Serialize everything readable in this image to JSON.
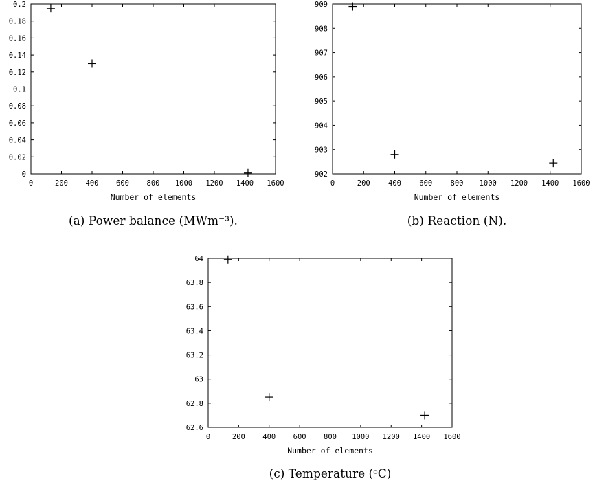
{
  "chart_data": [
    {
      "type": "scatter",
      "xlabel": "Number of elements",
      "caption": "(a) Power balance (MWm⁻³).",
      "xlim": [
        0,
        1600
      ],
      "ylim": [
        0,
        0.2
      ],
      "xticks": [
        0,
        200,
        400,
        600,
        800,
        1000,
        1200,
        1400,
        1600
      ],
      "xtick_labels": [
        "0",
        "200",
        "400",
        "600",
        "800",
        "1000",
        "1200",
        "1400",
        "1600"
      ],
      "yticks": [
        0,
        0.02,
        0.04,
        0.06,
        0.08,
        0.1,
        0.12,
        0.14,
        0.16,
        0.18,
        0.2
      ],
      "ytick_labels": [
        "0",
        "0.02",
        "0.04",
        "0.06",
        "0.08",
        "0.1",
        "0.12",
        "0.14",
        "0.16",
        "0.18",
        "0.2"
      ],
      "series": [
        {
          "marker": "plus",
          "x": [
            130,
            400,
            1420
          ],
          "y": [
            0.195,
            0.13,
            0.001
          ]
        }
      ]
    },
    {
      "type": "scatter",
      "xlabel": "Number of elements",
      "caption": "(b) Reaction (N).",
      "xlim": [
        0,
        1600
      ],
      "ylim": [
        902,
        909
      ],
      "xticks": [
        0,
        200,
        400,
        600,
        800,
        1000,
        1200,
        1400,
        1600
      ],
      "xtick_labels": [
        "0",
        "200",
        "400",
        "600",
        "800",
        "1000",
        "1200",
        "1400",
        "1600"
      ],
      "yticks": [
        902,
        903,
        904,
        905,
        906,
        907,
        908,
        909
      ],
      "ytick_labels": [
        "902",
        "903",
        "904",
        "905",
        "906",
        "907",
        "908",
        "909"
      ],
      "series": [
        {
          "marker": "plus",
          "x": [
            130,
            400,
            1420
          ],
          "y": [
            908.9,
            902.8,
            902.45
          ]
        }
      ]
    },
    {
      "type": "scatter",
      "xlabel": "Number of elements",
      "caption": "(c) Temperature (ᵒC)",
      "xlim": [
        0,
        1600
      ],
      "ylim": [
        62.6,
        64
      ],
      "xticks": [
        0,
        200,
        400,
        600,
        800,
        1000,
        1200,
        1400,
        1600
      ],
      "xtick_labels": [
        "0",
        "200",
        "400",
        "600",
        "800",
        "1000",
        "1200",
        "1400",
        "1600"
      ],
      "yticks": [
        62.6,
        62.8,
        63,
        63.2,
        63.4,
        63.6,
        63.8,
        64
      ],
      "ytick_labels": [
        "62.6",
        "62.8",
        "63",
        "63.2",
        "63.4",
        "63.6",
        "63.8",
        "64"
      ],
      "series": [
        {
          "marker": "plus",
          "x": [
            130,
            400,
            1420
          ],
          "y": [
            63.99,
            62.85,
            62.7
          ]
        }
      ]
    }
  ]
}
